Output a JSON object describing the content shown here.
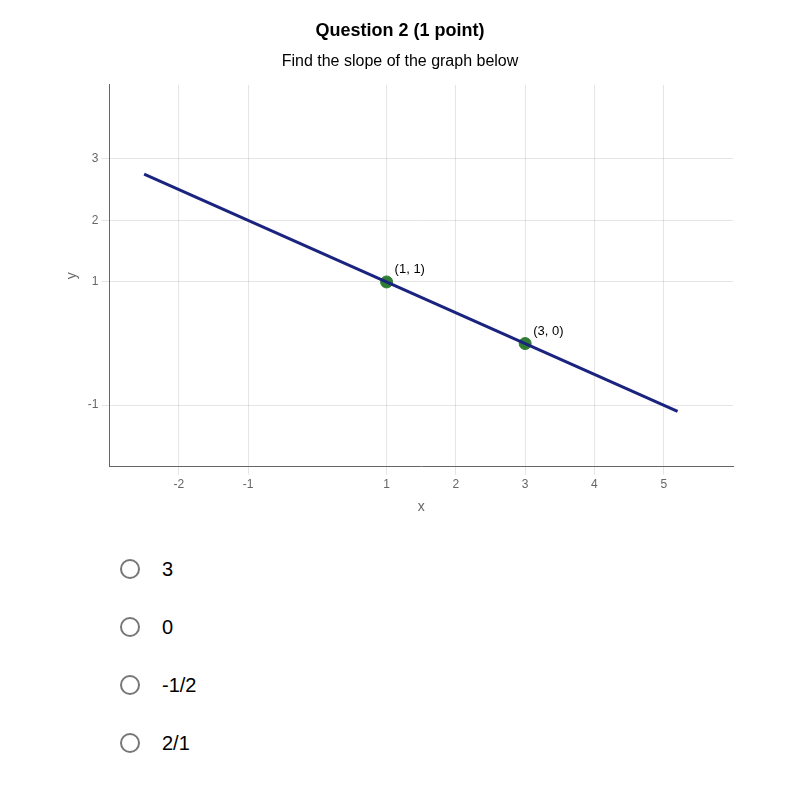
{
  "chart_data": {
    "type": "line",
    "title": "Question 2 (1 point)",
    "subtitle": "Find the slope of the graph below",
    "x_label": "x",
    "y_label": "y",
    "xlim": [
      -3.0,
      6.0
    ],
    "ylim": [
      -2.0,
      4.2
    ],
    "xticks": [
      -2,
      -1,
      1,
      2,
      3,
      4,
      5
    ],
    "yticks": [
      -1,
      1,
      2,
      3
    ],
    "grid": true,
    "data_labels": true,
    "series": [
      {
        "type": "line",
        "color": "#1a237e",
        "x": [
          -2.5,
          5.2
        ],
        "values": [
          2.75,
          -1.1
        ]
      },
      {
        "type": "scatter",
        "color": "#2e7d32",
        "x": [
          1,
          3
        ],
        "values": [
          1,
          0
        ],
        "value_labels": [
          "(1, 1)",
          "(3, 0)"
        ]
      }
    ],
    "annotations": [
      "3",
      "0",
      "-1/2",
      "2/1"
    ]
  }
}
